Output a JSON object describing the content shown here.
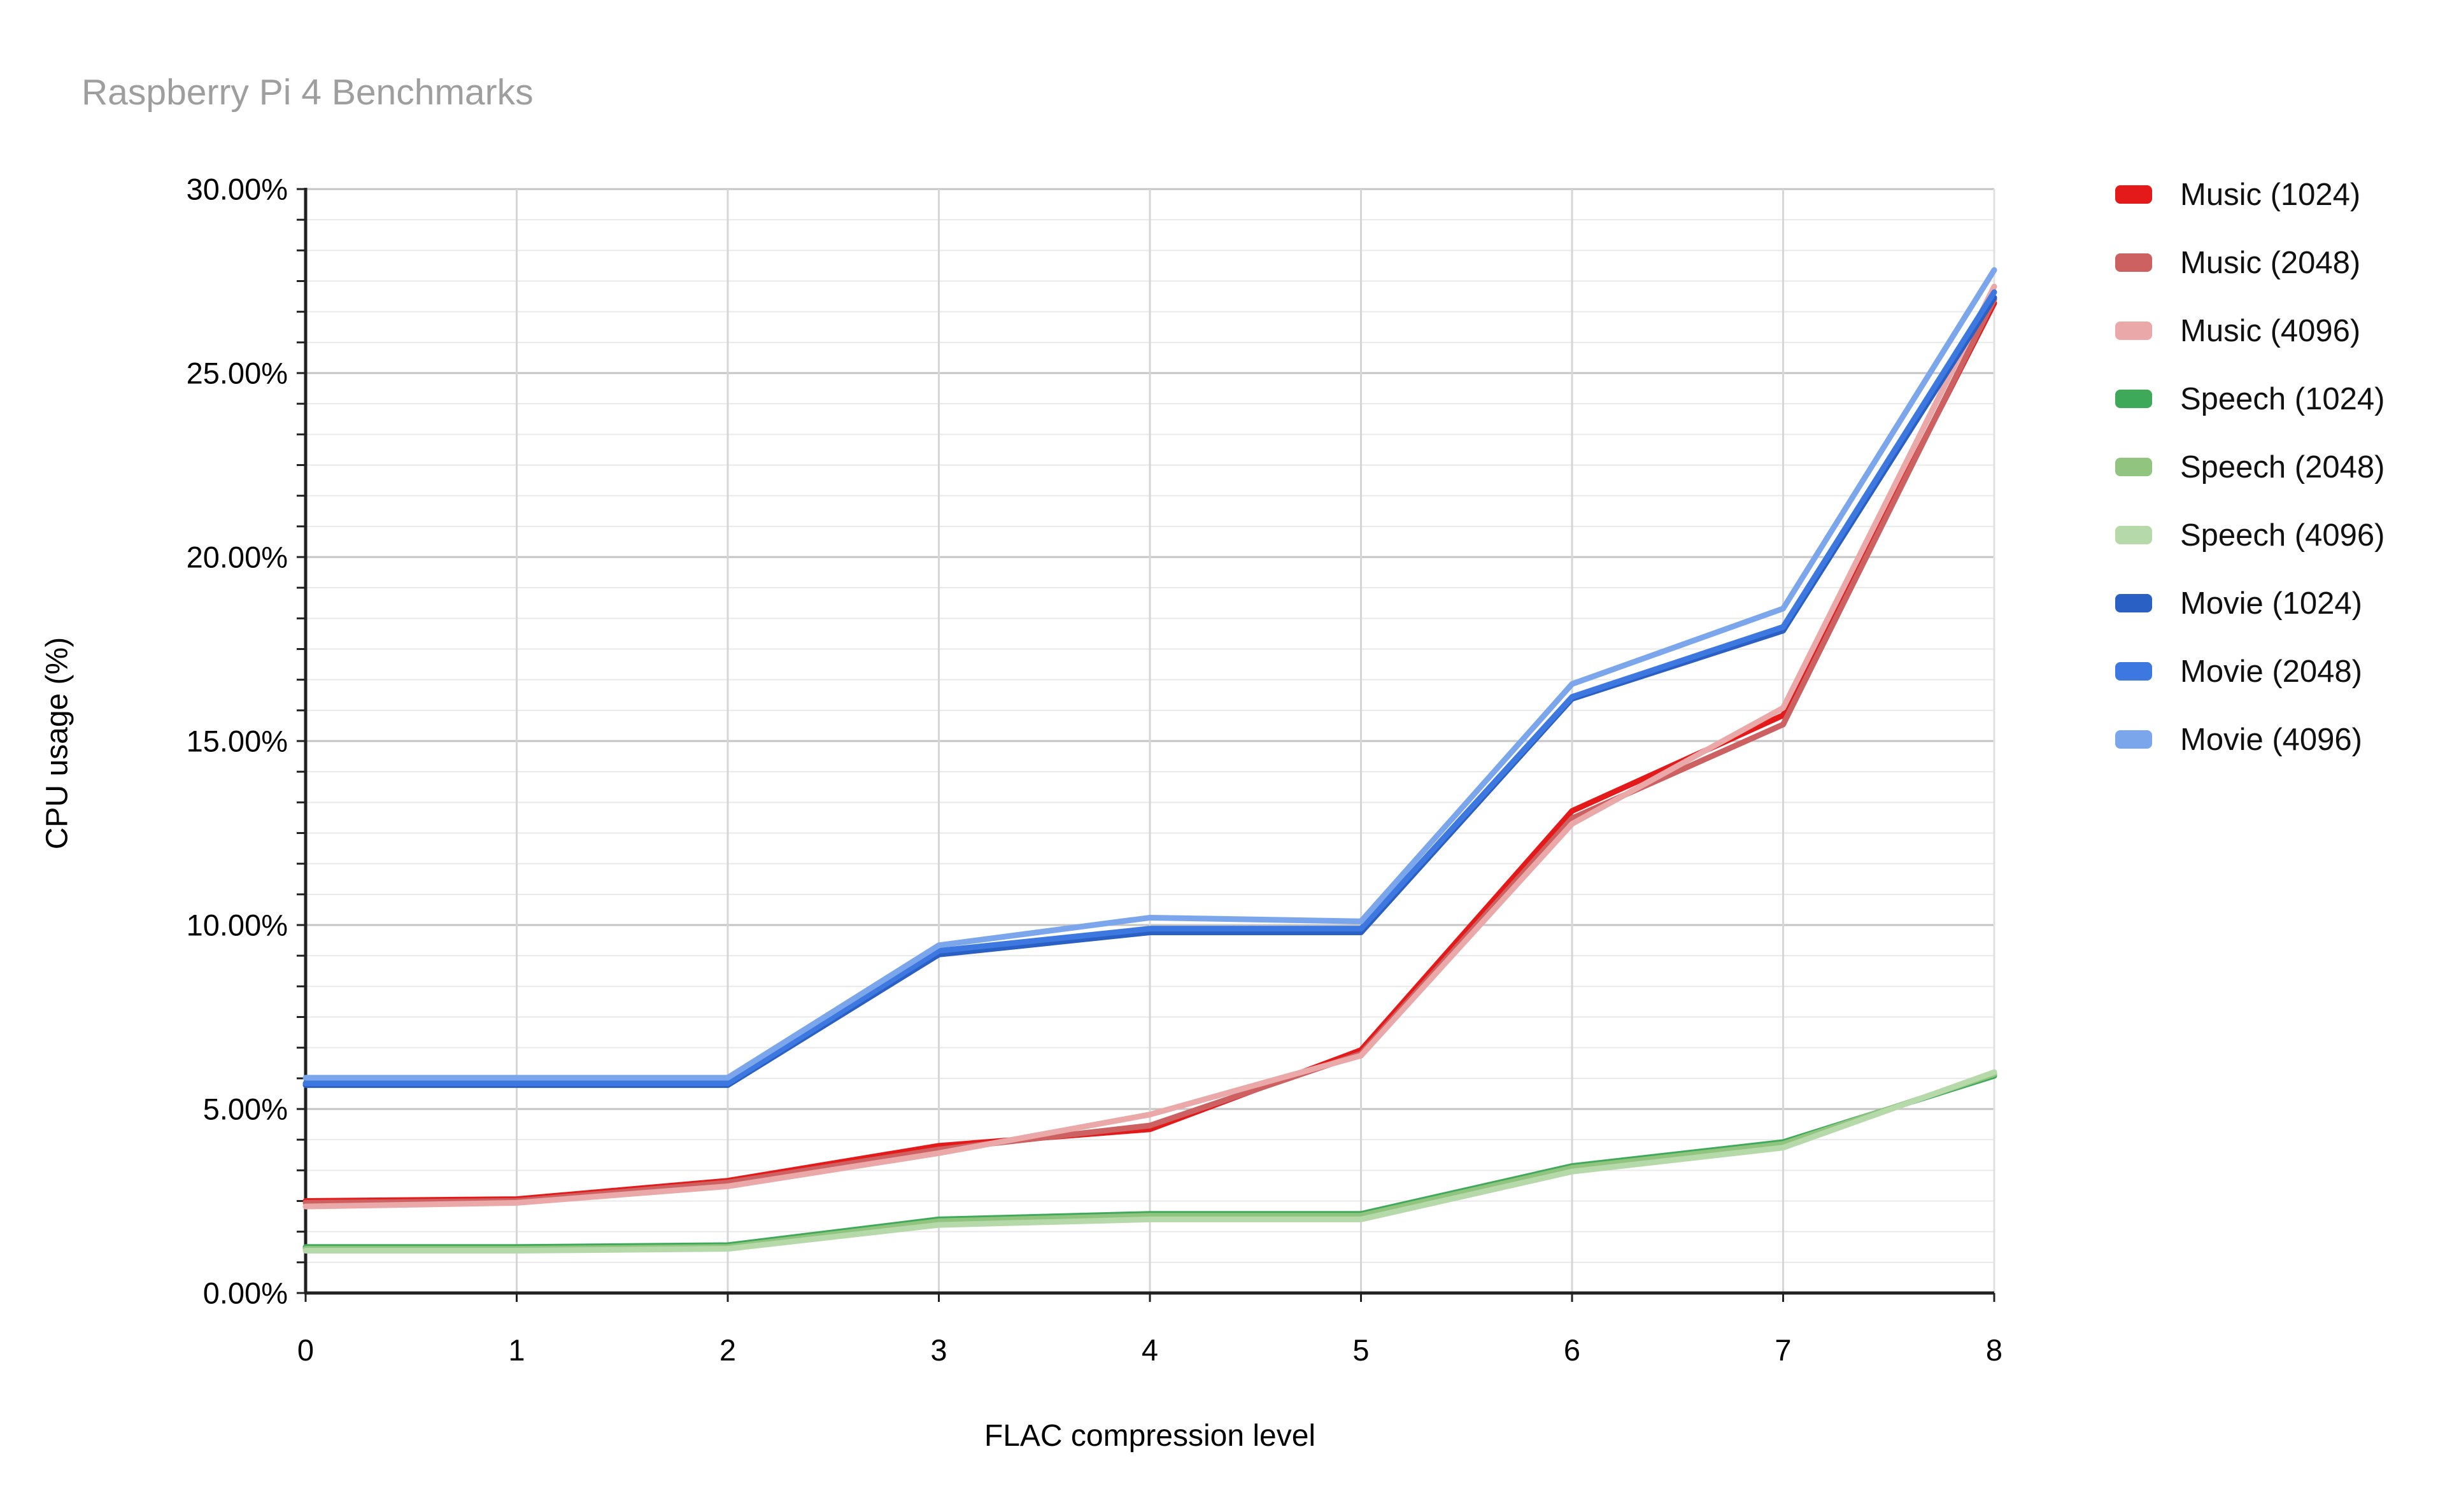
{
  "title": "Raspberry Pi 4 Benchmarks",
  "chart_data": {
    "type": "line",
    "title": "Raspberry Pi 4 Benchmarks",
    "xlabel": "FLAC compression level",
    "ylabel": "CPU usage (%)",
    "x": [
      0,
      1,
      2,
      3,
      4,
      5,
      6,
      7,
      8
    ],
    "x_tick_labels": [
      "0",
      "1",
      "2",
      "3",
      "4",
      "5",
      "6",
      "7",
      "8"
    ],
    "y_tick_labels": [
      "0.00%",
      "5.00%",
      "10.00%",
      "15.00%",
      "20.00%",
      "25.00%",
      "30.00%"
    ],
    "ylim": [
      0,
      30
    ],
    "y_major_step": 5,
    "y_minor_per_major": 6,
    "grid": true,
    "legend_position": "right",
    "series": [
      {
        "name": "Music (1024)",
        "color": "#e41a1a",
        "values": [
          2.5,
          2.55,
          3.05,
          4.0,
          4.45,
          6.6,
          13.1,
          15.7,
          26.9
        ]
      },
      {
        "name": "Music (2048)",
        "color": "#cd6161",
        "values": [
          2.45,
          2.5,
          3.0,
          3.9,
          4.55,
          6.5,
          12.9,
          15.45,
          27.0
        ]
      },
      {
        "name": "Music (4096)",
        "color": "#eaa8a8",
        "values": [
          2.35,
          2.45,
          2.9,
          3.8,
          4.85,
          6.45,
          12.75,
          15.9,
          27.35
        ]
      },
      {
        "name": "Speech (1024)",
        "color": "#3fa95a",
        "values": [
          1.25,
          1.25,
          1.3,
          2.0,
          2.15,
          2.15,
          3.45,
          4.1,
          5.9
        ]
      },
      {
        "name": "Speech (2048)",
        "color": "#90c47f",
        "values": [
          1.2,
          1.2,
          1.25,
          1.95,
          2.1,
          2.1,
          3.4,
          4.05,
          5.95
        ]
      },
      {
        "name": "Speech (4096)",
        "color": "#b5d9a8",
        "values": [
          1.15,
          1.15,
          1.2,
          1.85,
          2.0,
          2.0,
          3.3,
          3.95,
          6.0
        ]
      },
      {
        "name": "Movie (1024)",
        "color": "#2a5fc4",
        "values": [
          5.65,
          5.65,
          5.65,
          9.2,
          9.8,
          9.8,
          16.15,
          18.0,
          27.05
        ]
      },
      {
        "name": "Movie (2048)",
        "color": "#3c78e0",
        "values": [
          5.7,
          5.7,
          5.7,
          9.3,
          9.9,
          9.9,
          16.2,
          18.1,
          27.2
        ]
      },
      {
        "name": "Movie (4096)",
        "color": "#7ba6ec",
        "values": [
          5.85,
          5.85,
          5.85,
          9.45,
          10.2,
          10.1,
          16.55,
          18.6,
          27.8
        ]
      }
    ],
    "colors": {
      "title_text": "#9e9e9e",
      "axis_text": "#000000",
      "axis_line": "#212121",
      "major_gridline": "#c4c4c4",
      "minor_gridline": "#e9e9e9",
      "vertical_gridline": "#d6d6d6",
      "plot_right_border": "#e0e0e0",
      "background": "#ffffff"
    }
  }
}
